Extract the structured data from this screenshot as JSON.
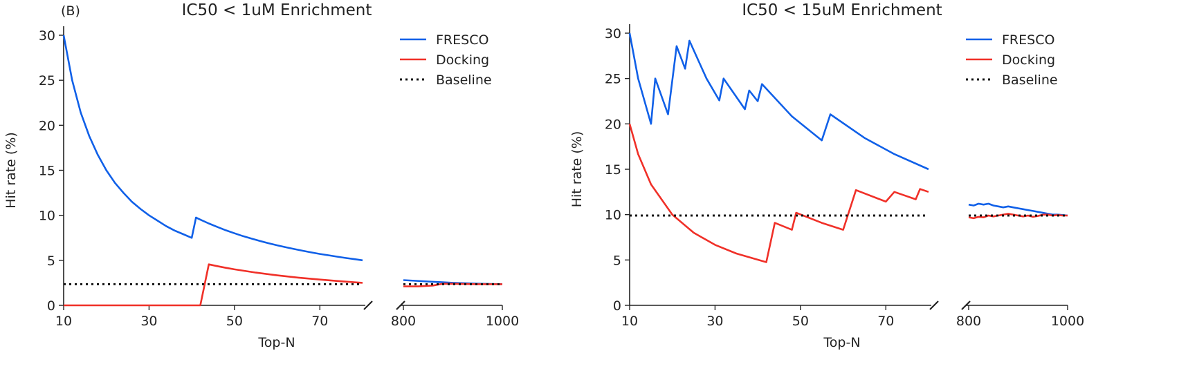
{
  "panel_label": "(B)",
  "colors": {
    "fresco": "#1060e8",
    "docking": "#f03028",
    "baseline": "#111111",
    "axis": "#222222"
  },
  "chart_data": [
    {
      "type": "line",
      "title": "IC50 < 1uM Enrichment",
      "xlabel": "Top-N",
      "ylabel": "Hit rate (%)",
      "ylim": [
        0,
        31
      ],
      "yticks": [
        "0",
        "5",
        "10",
        "15",
        "20",
        "25",
        "30"
      ],
      "xlim_main": [
        10,
        80
      ],
      "xticks_main": [
        "10",
        "30",
        "50",
        "70"
      ],
      "xlim_tail": [
        800,
        1000
      ],
      "xticks_tail": [
        "800",
        "1000"
      ],
      "broken_x_axis": true,
      "grid": false,
      "legend_position": "top-right",
      "legend": [
        "FRESCO",
        "Docking",
        "Baseline"
      ],
      "series": [
        {
          "name": "FRESCO",
          "color": "#1060e8",
          "style": "solid",
          "x": [
            10,
            12,
            14,
            16,
            18,
            20,
            22,
            24,
            26,
            28,
            30,
            32,
            34,
            36,
            38,
            40,
            41,
            42,
            44,
            46,
            48,
            50,
            52,
            54,
            56,
            58,
            60,
            62,
            64,
            66,
            68,
            70,
            72,
            74,
            76,
            78,
            80
          ],
          "y": [
            30.0,
            25.0,
            21.4,
            18.8,
            16.7,
            15.0,
            13.6,
            12.5,
            11.5,
            10.7,
            10.0,
            9.4,
            8.8,
            8.3,
            7.9,
            7.5,
            9.75,
            9.52,
            9.09,
            8.7,
            8.33,
            8.0,
            7.69,
            7.41,
            7.14,
            6.9,
            6.67,
            6.45,
            6.25,
            6.06,
            5.88,
            5.71,
            5.56,
            5.41,
            5.26,
            5.13,
            5.0
          ],
          "tail_x": [
            800,
            850,
            900,
            950,
            1000
          ],
          "tail_y": [
            2.8,
            2.65,
            2.5,
            2.4,
            2.35
          ]
        },
        {
          "name": "Docking",
          "color": "#f03028",
          "style": "solid",
          "x": [
            10,
            20,
            30,
            40,
            42,
            44,
            46,
            48,
            50,
            55,
            60,
            65,
            70,
            75,
            80
          ],
          "y": [
            0,
            0,
            0,
            0,
            0,
            4.55,
            4.35,
            4.17,
            4.0,
            3.64,
            3.33,
            3.08,
            2.86,
            2.67,
            2.5
          ],
          "tail_x": [
            800,
            830,
            860,
            880,
            900,
            950,
            1000
          ],
          "tail_y": [
            2.1,
            2.1,
            2.2,
            2.4,
            2.4,
            2.35,
            2.35
          ]
        },
        {
          "name": "Baseline",
          "color": "#111111",
          "style": "dotted",
          "x": [
            10,
            80
          ],
          "y": [
            2.35,
            2.35
          ],
          "tail_x": [
            800,
            1000
          ],
          "tail_y": [
            2.35,
            2.35
          ]
        }
      ]
    },
    {
      "type": "line",
      "title": "IC50 < 15uM Enrichment",
      "xlabel": "Top-N",
      "ylabel": "Hit rate (%)",
      "ylim": [
        0,
        31
      ],
      "yticks": [
        "0",
        "5",
        "10",
        "15",
        "20",
        "25",
        "30"
      ],
      "xlim_main": [
        10,
        80
      ],
      "xticks_main": [
        "10",
        "30",
        "50",
        "70"
      ],
      "xlim_tail": [
        800,
        1000
      ],
      "xticks_tail": [
        "800",
        "1000"
      ],
      "broken_x_axis": true,
      "grid": false,
      "legend_position": "top-right",
      "legend": [
        "FRESCO",
        "Docking",
        "Baseline"
      ],
      "series": [
        {
          "name": "FRESCO",
          "color": "#1060e8",
          "style": "solid",
          "x": [
            10,
            12,
            15,
            16,
            19,
            21,
            23,
            24,
            28,
            31,
            32,
            37,
            38,
            40,
            41,
            48,
            55,
            57,
            65,
            72,
            80
          ],
          "y": [
            30.0,
            25.0,
            20.0,
            25.0,
            21.05,
            28.57,
            26.09,
            29.17,
            25.0,
            22.58,
            25.0,
            21.62,
            23.68,
            22.5,
            24.39,
            20.83,
            18.18,
            21.05,
            18.46,
            16.67,
            15.0
          ],
          "tail_x": [
            800,
            810,
            820,
            830,
            840,
            850,
            860,
            870,
            880,
            890,
            900,
            910,
            920,
            930,
            940,
            950,
            960,
            970,
            980,
            990,
            1000
          ],
          "tail_y": [
            11.1,
            11.0,
            11.2,
            11.1,
            11.2,
            11.0,
            10.9,
            10.8,
            10.9,
            10.8,
            10.7,
            10.6,
            10.5,
            10.4,
            10.3,
            10.2,
            10.1,
            10.0,
            10.0,
            9.95,
            9.9
          ]
        },
        {
          "name": "Docking",
          "color": "#f03028",
          "style": "solid",
          "x": [
            10,
            12,
            15,
            20,
            25,
            30,
            35,
            42,
            44,
            48,
            49,
            55,
            60,
            63,
            70,
            72,
            77,
            78,
            80
          ],
          "y": [
            20.0,
            16.67,
            13.33,
            10.0,
            8.0,
            6.67,
            5.71,
            4.76,
            9.09,
            8.33,
            10.2,
            9.09,
            8.33,
            12.7,
            11.43,
            12.5,
            11.69,
            12.82,
            12.5
          ],
          "tail_x": [
            800,
            810,
            820,
            830,
            840,
            850,
            860,
            870,
            880,
            890,
            900,
            910,
            920,
            930,
            940,
            950,
            960,
            970,
            980,
            990,
            1000
          ],
          "tail_y": [
            9.7,
            9.6,
            9.75,
            9.7,
            9.9,
            9.8,
            9.9,
            10.0,
            10.1,
            10.0,
            9.9,
            9.8,
            9.9,
            9.75,
            9.85,
            10.0,
            10.0,
            9.9,
            9.95,
            9.9,
            9.9
          ]
        },
        {
          "name": "Baseline",
          "color": "#111111",
          "style": "dotted",
          "x": [
            10,
            80
          ],
          "y": [
            9.9,
            9.9
          ],
          "tail_x": [
            800,
            1000
          ],
          "tail_y": [
            9.9,
            9.9
          ]
        }
      ]
    }
  ]
}
